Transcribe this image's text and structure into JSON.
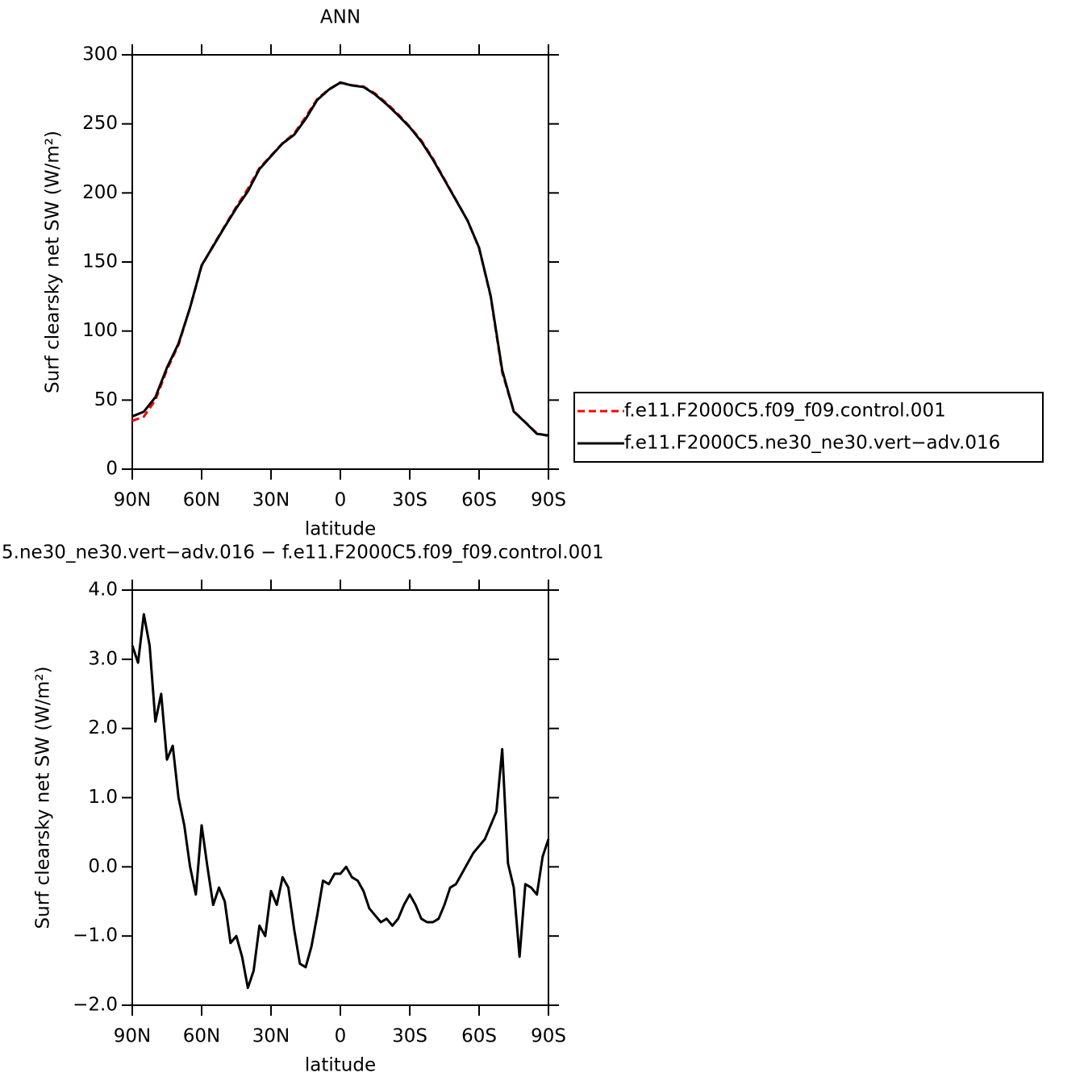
{
  "chart_data": [
    {
      "type": "line",
      "title": "ANN",
      "ylabel": "Surf clearsky net SW (W/m²)",
      "xlabel": "latitude",
      "x": [
        90,
        85,
        80,
        75,
        70,
        65,
        60,
        55,
        50,
        45,
        40,
        35,
        30,
        25,
        20,
        15,
        10,
        5,
        0,
        -5,
        -10,
        -15,
        -20,
        -25,
        -30,
        -35,
        -40,
        -45,
        -50,
        -55,
        -60,
        -65,
        -70,
        -75,
        -80,
        -85,
        -90
      ],
      "series": [
        {
          "name": "f.e11.F2000C5.f09_f09.control.001",
          "color": "#ff0000",
          "linestyle": "dashed",
          "values": [
            35,
            38,
            50,
            72,
            90,
            117,
            147,
            162,
            176,
            190,
            203,
            218,
            227,
            236,
            243,
            255,
            268,
            275,
            280,
            278,
            277,
            272,
            265,
            257,
            248,
            238,
            225,
            210,
            195,
            180,
            160,
            125,
            70,
            42,
            34,
            26,
            24
          ]
        },
        {
          "name": "f.e11.F2000C5.ne30_ne30.vert−adv.016",
          "color": "#000000",
          "linestyle": "solid",
          "values": [
            38.2,
            41.6,
            52.1,
            73.5,
            91,
            117,
            147.6,
            161.5,
            175.5,
            189,
            201.2,
            217.2,
            226.6,
            235.8,
            242.1,
            253.6,
            267.3,
            274.8,
            279.9,
            277.8,
            276.7,
            271.3,
            264.2,
            256.2,
            247.6,
            237.2,
            224.2,
            209.5,
            194.8,
            180,
            160.3,
            125.6,
            71.7,
            41.7,
            33.8,
            25.6,
            24.4
          ]
        }
      ],
      "xlim": [
        90,
        -90
      ],
      "xticks": [
        {
          "value": 90,
          "label": "90N"
        },
        {
          "value": 60,
          "label": "60N"
        },
        {
          "value": 30,
          "label": "30N"
        },
        0,
        {
          "value": -30,
          "label": "30S"
        },
        {
          "value": -60,
          "label": "60S"
        },
        {
          "value": -90,
          "label": "90S"
        }
      ],
      "ylim": [
        0,
        300
      ],
      "yticks": [
        0,
        50,
        100,
        150,
        200,
        250,
        300
      ],
      "legend": "right"
    },
    {
      "type": "line",
      "title": "5.ne30_ne30.vert−adv.016 − f.e11.F2000C5.f09_f09.control.001",
      "ylabel": "Surf clearsky net SW (W/m²)",
      "xlabel": "latitude",
      "x": [
        90,
        87.5,
        85,
        82.5,
        80,
        77.5,
        75,
        72.5,
        70,
        67.5,
        65,
        62.5,
        60,
        57.5,
        55,
        52.5,
        50,
        47.5,
        45,
        42.5,
        40,
        37.5,
        35,
        32.5,
        30,
        27.5,
        25,
        22.5,
        20,
        17.5,
        15,
        12.5,
        10,
        7.5,
        5,
        2.5,
        0,
        -2.5,
        -5,
        -7.5,
        -10,
        -12.5,
        -15,
        -17.5,
        -20,
        -22.5,
        -25,
        -27.5,
        -30,
        -32.5,
        -35,
        -37.5,
        -40,
        -42.5,
        -45,
        -47.5,
        -50,
        -52.5,
        -55,
        -57.5,
        -60,
        -62.5,
        -65,
        -67.5,
        -70,
        -72.5,
        -75,
        -77.5,
        -80,
        -82.5,
        -85,
        -87.5,
        -90
      ],
      "values": [
        3.2,
        2.95,
        3.65,
        3.2,
        2.1,
        2.5,
        1.55,
        1.75,
        1.0,
        0.6,
        0.0,
        -0.4,
        0.6,
        0.0,
        -0.55,
        -0.3,
        -0.5,
        -1.1,
        -1.0,
        -1.3,
        -1.75,
        -1.5,
        -0.85,
        -1.0,
        -0.35,
        -0.55,
        -0.15,
        -0.3,
        -0.9,
        -1.4,
        -1.45,
        -1.15,
        -0.7,
        -0.2,
        -0.25,
        -0.1,
        -0.1,
        0.0,
        -0.15,
        -0.2,
        -0.35,
        -0.6,
        -0.7,
        -0.8,
        -0.75,
        -0.85,
        -0.75,
        -0.55,
        -0.4,
        -0.55,
        -0.75,
        -0.8,
        -0.8,
        -0.75,
        -0.55,
        -0.3,
        -0.25,
        -0.1,
        0.05,
        0.2,
        0.3,
        0.4,
        0.6,
        0.8,
        1.7,
        0.05,
        -0.3,
        -1.3,
        -0.25,
        -0.3,
        -0.4,
        0.15,
        0.4
      ],
      "color": "#000000",
      "xlim": [
        90,
        -90
      ],
      "xticks": [
        {
          "value": 90,
          "label": "90N"
        },
        {
          "value": 60,
          "label": "60N"
        },
        {
          "value": 30,
          "label": "30N"
        },
        0,
        {
          "value": -30,
          "label": "30S"
        },
        {
          "value": -60,
          "label": "60S"
        },
        {
          "value": -90,
          "label": "90S"
        }
      ],
      "ylim": [
        -2,
        4
      ],
      "yticks": [
        {
          "value": -2,
          "label": "−2.0"
        },
        {
          "value": -1,
          "label": "−1.0"
        },
        {
          "value": 0,
          "label": "0.0"
        },
        {
          "value": 1,
          "label": "1.0"
        },
        {
          "value": 2,
          "label": "2.0"
        },
        {
          "value": 3,
          "label": "3.0"
        },
        {
          "value": 4,
          "label": "4.0"
        }
      ]
    }
  ]
}
